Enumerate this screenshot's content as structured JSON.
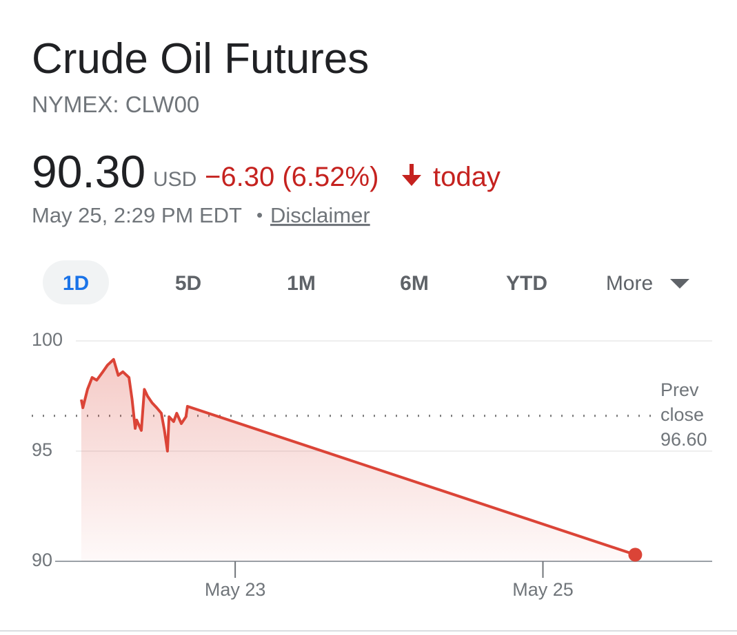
{
  "header": {
    "title": "Crude Oil Futures",
    "subtitle": "NYMEX: CLW00",
    "price": "90.30",
    "currency": "USD",
    "change": "−6.30 (6.52%)",
    "period": "today",
    "timestamp": "May 25, 2:29 PM EDT",
    "separator": "•",
    "disclaimer": "Disclaimer"
  },
  "tabs": [
    "1D",
    "5D",
    "1M",
    "6M",
    "YTD",
    "More"
  ],
  "selected_tab": 0,
  "chart_data": {
    "type": "area-line",
    "x": [
      22.0,
      22.01,
      22.04,
      22.07,
      22.1,
      22.14,
      22.17,
      22.21,
      22.24,
      22.27,
      22.31,
      22.33,
      22.35,
      22.36,
      22.39,
      22.41,
      22.43,
      22.46,
      22.49,
      22.52,
      22.54,
      22.56,
      22.57,
      22.6,
      22.62,
      22.65,
      22.68,
      22.69,
      25.6
    ],
    "series": [
      {
        "name": "Crude Oil Futures",
        "color": "#db4437",
        "values": [
          97.34,
          96.97,
          97.8,
          98.34,
          98.22,
          98.6,
          98.9,
          99.16,
          98.44,
          98.6,
          98.34,
          97.34,
          96.03,
          96.41,
          95.94,
          97.8,
          97.5,
          97.19,
          96.97,
          96.72,
          95.94,
          95.0,
          96.56,
          96.34,
          96.72,
          96.25,
          96.56,
          97.03,
          90.3
        ]
      }
    ],
    "xlim": [
      21.83,
      26.1
    ],
    "xticks": [
      {
        "value": 23,
        "label": "May 23"
      },
      {
        "value": 25,
        "label": "May 25"
      }
    ],
    "ylim": [
      90,
      100
    ],
    "yticks": [
      90,
      95,
      100
    ],
    "grid": true,
    "reference_line": {
      "label_lines": [
        "Prev",
        "close"
      ],
      "value": 96.6,
      "value_label": "96.60"
    }
  }
}
